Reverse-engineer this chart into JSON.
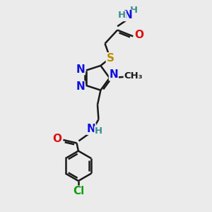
{
  "bg_color": "#ebebeb",
  "bond_color": "#1a1a1a",
  "bond_width": 1.8,
  "atom_colors": {
    "C": "#1a1a1a",
    "H": "#3a9090",
    "N": "#1010dd",
    "O": "#dd1010",
    "S": "#b89000",
    "Cl": "#10a010"
  },
  "figsize": [
    3.0,
    3.0
  ],
  "dpi": 100
}
